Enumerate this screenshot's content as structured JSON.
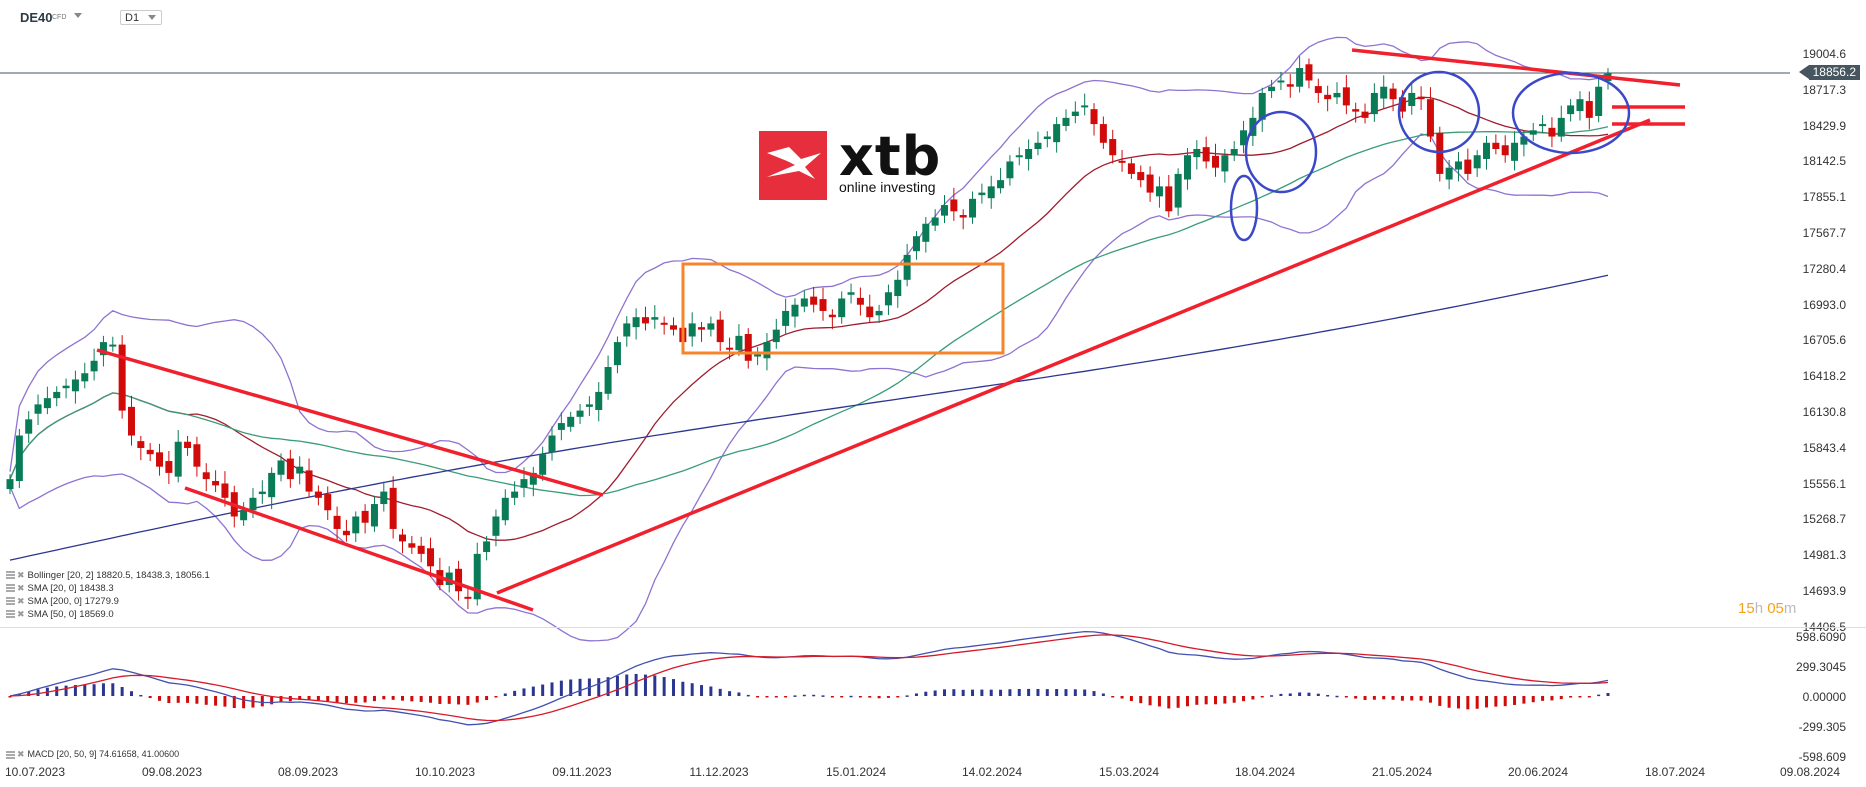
{
  "header": {
    "symbol": "DE40",
    "instrument_type": "CFD",
    "timeframe": "D1"
  },
  "logo": {
    "brand": "xtb",
    "tagline": "online investing",
    "color": "#e62e3c"
  },
  "price_axis": {
    "labels": [
      "19004.6",
      "18717.3",
      "18429.9",
      "18142.5",
      "17855.1",
      "17567.7",
      "17280.4",
      "16993.0",
      "16705.6",
      "16418.2",
      "16130.8",
      "15843.4",
      "15556.1",
      "15268.7",
      "14981.3",
      "14693.9",
      "14406.5"
    ],
    "current_price": "18856.2"
  },
  "macd_axis": {
    "labels": [
      "598.6090",
      "299.3045",
      "0.00000",
      "-299.305",
      "-598.609"
    ]
  },
  "time_axis": {
    "labels": [
      "10.07.2023",
      "09.08.2023",
      "08.09.2023",
      "10.10.2023",
      "09.11.2023",
      "11.12.2023",
      "15.01.2024",
      "14.02.2024",
      "15.03.2024",
      "18.04.2024",
      "21.05.2024",
      "20.06.2024",
      "18.07.2024",
      "09.08.2024"
    ]
  },
  "legend": {
    "bollinger": "Bollinger  [20, 2] 18820.5,  18438.3,  18056.1",
    "sma20": "SMA [20, 0] 18438.3",
    "sma200": "SMA [200, 0] 17279.9",
    "sma50": "SMA [50, 0] 18569.0",
    "macd": "MACD [20, 50, 9] 74.61658,  41.00600"
  },
  "timer": {
    "hours": "15",
    "h_unit": "h",
    "minutes": "05",
    "m_unit": "m"
  },
  "colors": {
    "bull": "#0a7b57",
    "bear": "#d10a0a",
    "bollinger": "#8f73d1",
    "sma20": "#a01c2e",
    "sma50": "#3a9c78",
    "sma200": "#2c3690",
    "trendline": "#f0202c",
    "box": "#f7842a",
    "circle": "#3b48c8",
    "price_line": "#46555f"
  },
  "chart_data": {
    "type": "candlestick",
    "title": "DE40 CFD D1",
    "xlabel": "",
    "ylabel": "",
    "ylim": [
      14406.5,
      19100
    ],
    "x_tick_labels": [
      "10.07.2023",
      "09.08.2023",
      "08.09.2023",
      "10.10.2023",
      "09.11.2023",
      "11.12.2023",
      "15.01.2024",
      "14.02.2024",
      "15.03.2024",
      "18.04.2024",
      "21.05.2024",
      "20.06.2024",
      "18.07.2024",
      "09.08.2024"
    ],
    "current_price": 18856.2,
    "indicators": {
      "bollinger": {
        "period": 20,
        "dev": 2,
        "upper": 18820.5,
        "middle": 18438.3,
        "lower": 18056.1
      },
      "sma20": 18438.3,
      "sma200": 17279.9,
      "sma50": 18569.0,
      "macd": {
        "fast": 20,
        "slow": 50,
        "signal": 9,
        "macd": 74.61658,
        "signal_value": 41.006
      }
    },
    "closes_approx": [
      15600,
      15950,
      16080,
      16200,
      16250,
      16300,
      16350,
      16400,
      16450,
      16550,
      16700,
      16680,
      16150,
      15950,
      15850,
      15800,
      15700,
      15650,
      15900,
      15850,
      15700,
      15600,
      15550,
      15450,
      15300,
      15350,
      15450,
      15500,
      15650,
      15750,
      15600,
      15700,
      15500,
      15450,
      15350,
      15200,
      15150,
      15300,
      15250,
      15400,
      15500,
      15200,
      15100,
      15050,
      15000,
      14900,
      14750,
      14850,
      14700,
      14650,
      15000,
      15100,
      15300,
      15450,
      15500,
      15600,
      15650,
      15800,
      15950,
      16050,
      16100,
      16150,
      16200,
      16300,
      16500,
      16700,
      16850,
      16900,
      16850,
      16900,
      16850,
      16800,
      16700,
      16850,
      16800,
      16850,
      16700,
      16650,
      16750,
      16550,
      16600,
      16700,
      16800,
      16950,
      17000,
      17050,
      17000,
      16950,
      16900,
      17050,
      17100,
      17000,
      16900,
      16950,
      17100,
      17200,
      17400,
      17550,
      17650,
      17700,
      17800,
      17750,
      17700,
      17850,
      17900,
      17950,
      18000,
      18150,
      18200,
      18250,
      18300,
      18350,
      18450,
      18500,
      18550,
      18600,
      18450,
      18300,
      18200,
      18150,
      18050,
      18000,
      17900,
      17950,
      17750,
      18050,
      18200,
      18250,
      18150,
      18100,
      18200,
      18250,
      18400,
      18500,
      18700,
      18750,
      18800,
      18750,
      18900,
      18800,
      18700,
      18650,
      18700,
      18600,
      18550,
      18500,
      18700,
      18750,
      18650,
      18550,
      18700,
      18650,
      18350,
      18050,
      18100,
      18150,
      18050,
      18200,
      18300,
      18250,
      18200,
      18300,
      18350,
      18400,
      18450,
      18350,
      18500,
      18600,
      18650,
      18500,
      18750,
      18856
    ]
  }
}
